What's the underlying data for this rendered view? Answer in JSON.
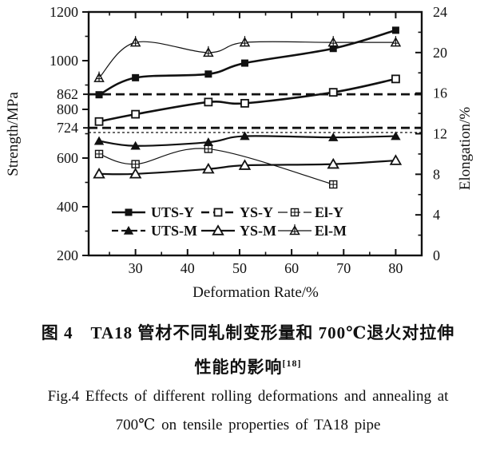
{
  "figure": {
    "caption_zh_line1": "图 4　TA18 管材不同轧制变形量和 700℃退火对拉伸",
    "caption_zh_line2": "性能的影响",
    "caption_zh_ref": "[18]",
    "caption_en_line1": "Fig.4  Effects of different rolling deformations and annealing at",
    "caption_en_line2": "700℃ on tensile properties of TA18 pipe"
  },
  "chart_data": {
    "type": "line",
    "title": "",
    "xlabel": "Deformation Rate/%",
    "ylabel_left": "Strength/MPa",
    "ylabel_right": "Elongation/%",
    "xlim": [
      21,
      85
    ],
    "x_ticks": [
      30,
      40,
      50,
      60,
      70,
      80
    ],
    "x_minor_ticks": [
      25,
      35,
      45,
      55,
      65,
      75
    ],
    "ylim_left": [
      200,
      1200
    ],
    "left_ticks": [
      200,
      400,
      600,
      800,
      1000,
      1200
    ],
    "left_special_ticks": [
      862,
      724
    ],
    "left_minor_ticks": [
      300,
      500,
      700,
      900,
      1100
    ],
    "ylim_right": [
      0,
      24
    ],
    "right_ticks": [
      0,
      4,
      8,
      12,
      16,
      20,
      24
    ],
    "right_minor_ticks": [
      2,
      6,
      10,
      14,
      18,
      22
    ],
    "x": [
      23,
      30,
      44,
      51,
      68,
      80
    ],
    "series": [
      {
        "name": "UTS-Y",
        "axis": "left",
        "marker": "square-filled",
        "line": "solid-thick",
        "values": [
          860,
          930,
          945,
          990,
          1050,
          1125
        ]
      },
      {
        "name": "YS-Y",
        "axis": "left",
        "marker": "square-open",
        "line": "solid-thick",
        "values": [
          750,
          780,
          830,
          825,
          870,
          925
        ]
      },
      {
        "name": "El-Y",
        "axis": "right",
        "marker": "square-cross",
        "line": "solid-thin",
        "x": [
          23,
          30,
          44,
          68
        ],
        "values": [
          10,
          9,
          10.5,
          7
        ]
      },
      {
        "name": "UTS-M",
        "axis": "left",
        "marker": "triangle-filled",
        "line": "solid",
        "values": [
          670,
          650,
          665,
          690,
          685,
          690
        ]
      },
      {
        "name": "YS-M",
        "axis": "left",
        "marker": "triangle-open",
        "line": "solid",
        "values": [
          535,
          535,
          555,
          570,
          575,
          590
        ]
      },
      {
        "name": "El-M",
        "axis": "right",
        "marker": "triangle-cross",
        "line": "solid-thin",
        "values": [
          17.5,
          21,
          20,
          21,
          21,
          21
        ]
      }
    ],
    "reference_lines": [
      {
        "axis": "left",
        "value": 862,
        "style": "dashed-heavy"
      },
      {
        "axis": "left",
        "value": 724,
        "style": "dashed-heavy"
      },
      {
        "axis": "left",
        "value": 705,
        "style": "dotted-fine"
      }
    ],
    "legend": {
      "position": "inside-bottom",
      "rows": [
        [
          "UTS-Y",
          "YS-Y",
          "El-Y"
        ],
        [
          "UTS-M",
          "YS-M",
          "El-M"
        ]
      ]
    },
    "ink_color": "#111111",
    "background_color": "#ffffff"
  }
}
